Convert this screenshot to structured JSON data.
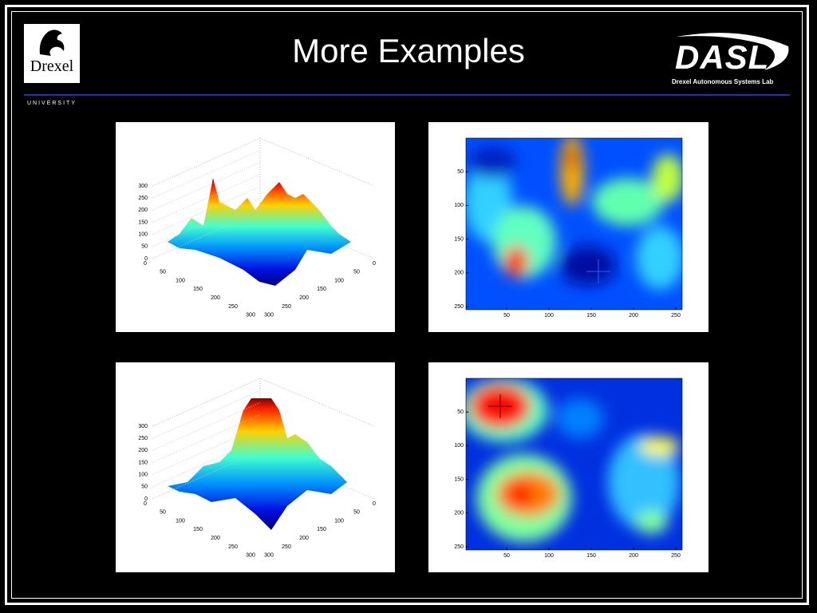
{
  "title": "More Examples",
  "logo_left": {
    "name": "Drexel",
    "sub": "UNIVERSITY"
  },
  "logo_right": {
    "name": "DASL",
    "sub": "Drexel Autonomous Systems Lab"
  },
  "panels": [
    {
      "type": "surface",
      "z_ticks": [
        0,
        50,
        100,
        150,
        200,
        250,
        300
      ],
      "x_ticks": [
        0,
        50,
        100,
        150,
        200,
        250,
        300
      ],
      "y_ticks": [
        0,
        50,
        100,
        150,
        200,
        250,
        300
      ]
    },
    {
      "type": "heatmap",
      "x_ticks": [
        50,
        100,
        150,
        200,
        250
      ],
      "y_ticks": [
        50,
        100,
        150,
        200,
        250
      ]
    },
    {
      "type": "surface",
      "z_ticks": [
        0,
        50,
        100,
        150,
        200,
        250,
        300
      ],
      "x_ticks": [
        0,
        50,
        100,
        150,
        200,
        250,
        300
      ],
      "y_ticks": [
        0,
        50,
        100,
        150,
        200,
        250,
        300
      ]
    },
    {
      "type": "heatmap",
      "x_ticks": [
        50,
        100,
        150,
        200,
        250
      ],
      "y_ticks": [
        50,
        100,
        150,
        200,
        250
      ]
    }
  ]
}
